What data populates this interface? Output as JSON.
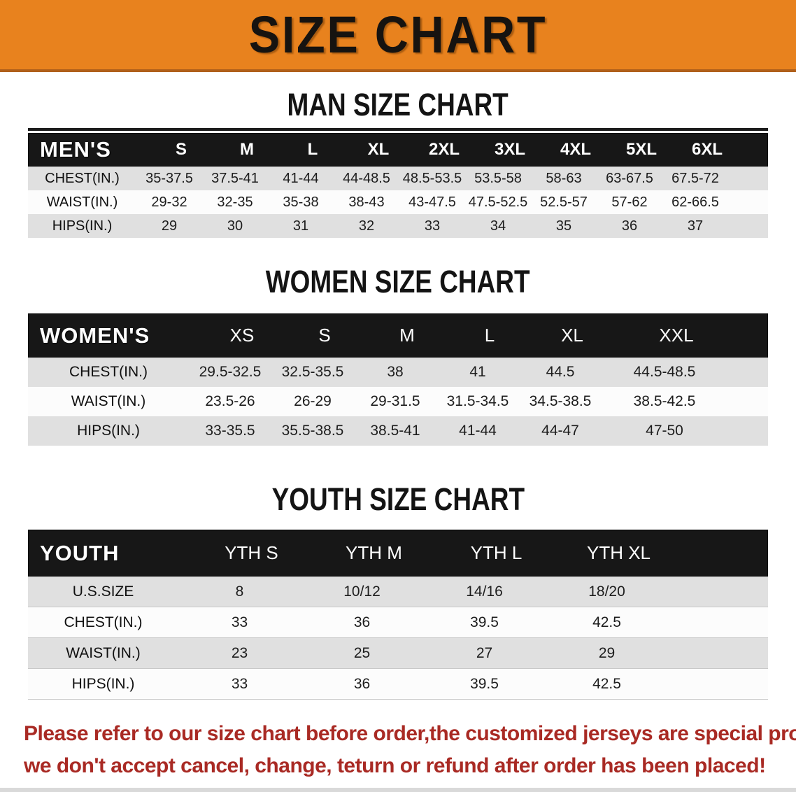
{
  "banner": {
    "title": "SIZE CHART"
  },
  "colors": {
    "banner_bg": "#E8821E",
    "banner_edge": "#B0601B",
    "table_header_bg": "#171717",
    "row_gray": "#E0E0E0",
    "row_white": "#FCFCFC",
    "disclaimer_red": "#A92A24"
  },
  "tables": [
    {
      "id": "mens",
      "section_title": "MAN SIZE CHART",
      "header_label": "MEN'S",
      "columns": [
        "S",
        "M",
        "L",
        "XL",
        "2XL",
        "3XL",
        "4XL",
        "5XL",
        "6XL"
      ],
      "rows": [
        {
          "label": "CHEST(IN.)",
          "values": [
            "35-37.5",
            "37.5-41",
            "41-44",
            "44-48.5",
            "48.5-53.5",
            "53.5-58",
            "58-63",
            "63-67.5",
            "67.5-72"
          ]
        },
        {
          "label": "WAIST(IN.)",
          "values": [
            "29-32",
            "32-35",
            "35-38",
            "38-43",
            "43-47.5",
            "47.5-52.5",
            "52.5-57",
            "57-62",
            "62-66.5"
          ]
        },
        {
          "label": "HIPS(IN.)",
          "values": [
            "29",
            "30",
            "31",
            "32",
            "33",
            "34",
            "35",
            "36",
            "37"
          ]
        }
      ]
    },
    {
      "id": "womens",
      "section_title": "WOMEN SIZE CHART",
      "header_label": "WOMEN'S",
      "columns": [
        "XS",
        "S",
        "M",
        "L",
        "XL",
        "XXL"
      ],
      "rows": [
        {
          "label": "CHEST(IN.)",
          "values": [
            "29.5-32.5",
            "32.5-35.5",
            "38",
            "41",
            "44.5",
            "44.5-48.5"
          ]
        },
        {
          "label": "WAIST(IN.)",
          "values": [
            "23.5-26",
            "26-29",
            "29-31.5",
            "31.5-34.5",
            "34.5-38.5",
            "38.5-42.5"
          ]
        },
        {
          "label": "HIPS(IN.)",
          "values": [
            "33-35.5",
            "35.5-38.5",
            "38.5-41",
            "41-44",
            "44-47",
            "47-50"
          ]
        }
      ]
    },
    {
      "id": "youth",
      "section_title": "YOUTH SIZE CHART",
      "header_label": "YOUTH",
      "columns": [
        "YTH S",
        "YTH M",
        "YTH L",
        "YTH XL"
      ],
      "rows": [
        {
          "label": "U.S.SIZE",
          "values": [
            "8",
            "10/12",
            "14/16",
            "18/20"
          ]
        },
        {
          "label": "CHEST(IN.)",
          "values": [
            "33",
            "36",
            "39.5",
            "42.5"
          ]
        },
        {
          "label": "WAIST(IN.)",
          "values": [
            "23",
            "25",
            "27",
            "29"
          ]
        },
        {
          "label": "HIPS(IN.)",
          "values": [
            "33",
            "36",
            "39.5",
            "42.5"
          ]
        }
      ]
    }
  ],
  "disclaimer": {
    "line1": "Please refer to our size chart before order,the customized jerseys are special products,",
    "line2": "we don't accept cancel, change, teturn or refund after order has been placed!"
  }
}
